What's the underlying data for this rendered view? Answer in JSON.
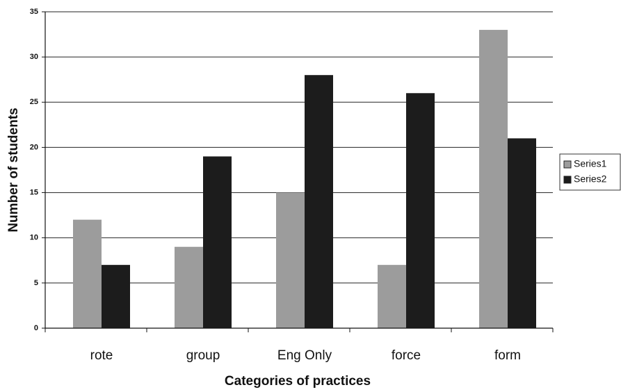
{
  "chart_data": {
    "type": "bar",
    "x_label": "Categories of practices",
    "y_label": "Number of students",
    "categories": [
      "rote",
      "group",
      "Eng Only",
      "force",
      "form"
    ],
    "series": [
      {
        "name": "Series1",
        "color": "#9c9c9c",
        "values": [
          12,
          9,
          15,
          7,
          33
        ]
      },
      {
        "name": "Series2",
        "color": "#1c1c1c",
        "values": [
          7,
          19,
          28,
          26,
          21
        ]
      }
    ],
    "ylim": [
      0,
      35
    ],
    "yticks": [
      0,
      5,
      10,
      15,
      20,
      25,
      30,
      35
    ],
    "grid": true,
    "legend": "right"
  }
}
